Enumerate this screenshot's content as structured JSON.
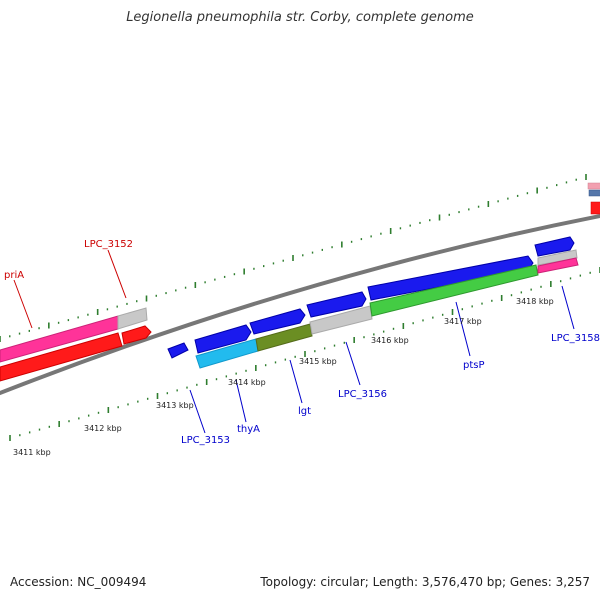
{
  "title": "Legionella pneumophila str. Corby, complete genome",
  "footer": {
    "accession": "Accession: NC_009494",
    "summary": "Topology: circular; Length: 3,576,470 bp; Genes: 3,257"
  },
  "colors": {
    "backbone": "#888888",
    "tick": "#2e7d2e",
    "gene_label_red": "#cc0000",
    "gene_label_blue": "#0000cc",
    "red_gene": "#ff1a1a",
    "pink_gene": "#ff3399",
    "blue_gene": "#1a1aee",
    "cyan_gene": "#22bbee",
    "olive_gene": "#6b8e23",
    "green_gene": "#44cc44",
    "gray_gene": "#c8c8c8"
  },
  "scale_labels": [
    "3411 kbp",
    "3412 kbp",
    "3413 kbp",
    "3414 kbp",
    "3415 kbp",
    "3416 kbp",
    "3417 kbp",
    "3418 kbp"
  ],
  "gene_labels": [
    {
      "name": "priA",
      "color": "red"
    },
    {
      "name": "LPC_3152",
      "color": "red"
    },
    {
      "name": "LPC_3153",
      "color": "blue"
    },
    {
      "name": "thyA",
      "color": "blue"
    },
    {
      "name": "lgt",
      "color": "blue"
    },
    {
      "name": "LPC_3156",
      "color": "blue"
    },
    {
      "name": "ptsP",
      "color": "blue"
    },
    {
      "name": "LPC_3158",
      "color": "blue"
    }
  ]
}
